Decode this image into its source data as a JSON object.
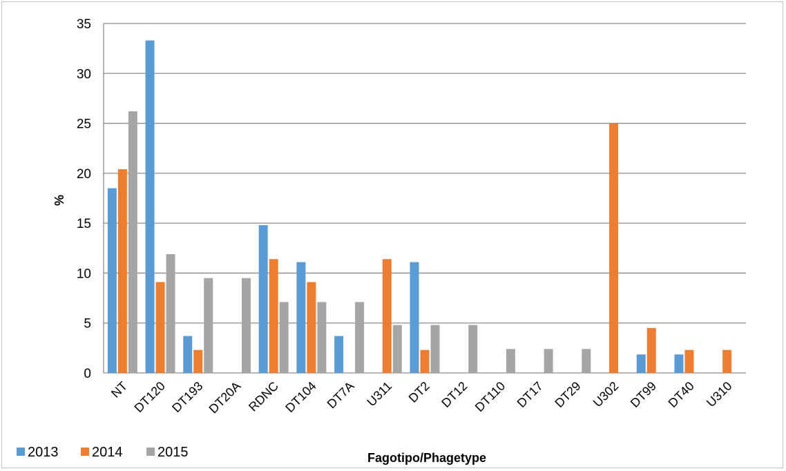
{
  "chart_data": {
    "type": "bar",
    "xlabel": "Fagotipo/Phagetype",
    "ylabel": "%",
    "ylim": [
      0,
      35
    ],
    "yticks": [
      0,
      5,
      10,
      15,
      20,
      25,
      30,
      35
    ],
    "grid": true,
    "legend_position": "bottom-left",
    "categories": [
      "NT",
      "DT120",
      "DT193",
      "DT20A",
      "RDNC",
      "DT104",
      "DT7A",
      "U311",
      "DT2",
      "DT12",
      "DT110",
      "DT17",
      "DT29",
      "U302",
      "DT99",
      "DT40",
      "U310"
    ],
    "series": [
      {
        "name": "2013",
        "color": "#5b9bd5",
        "values": [
          18.5,
          33.3,
          3.7,
          0,
          14.8,
          11.1,
          3.7,
          0,
          11.1,
          0,
          0,
          0,
          0,
          0,
          1.85,
          1.85,
          0
        ]
      },
      {
        "name": "2014",
        "color": "#ed7d31",
        "values": [
          20.4,
          9.1,
          2.3,
          0,
          11.4,
          9.1,
          0,
          11.4,
          2.3,
          0,
          0,
          0,
          0,
          25.0,
          4.5,
          2.3,
          2.3
        ]
      },
      {
        "name": "2015",
        "color": "#a5a5a5",
        "values": [
          26.2,
          11.9,
          9.5,
          9.5,
          7.1,
          7.1,
          7.1,
          4.8,
          4.8,
          4.8,
          2.4,
          2.4,
          2.4,
          0,
          0,
          0,
          0
        ]
      }
    ]
  }
}
